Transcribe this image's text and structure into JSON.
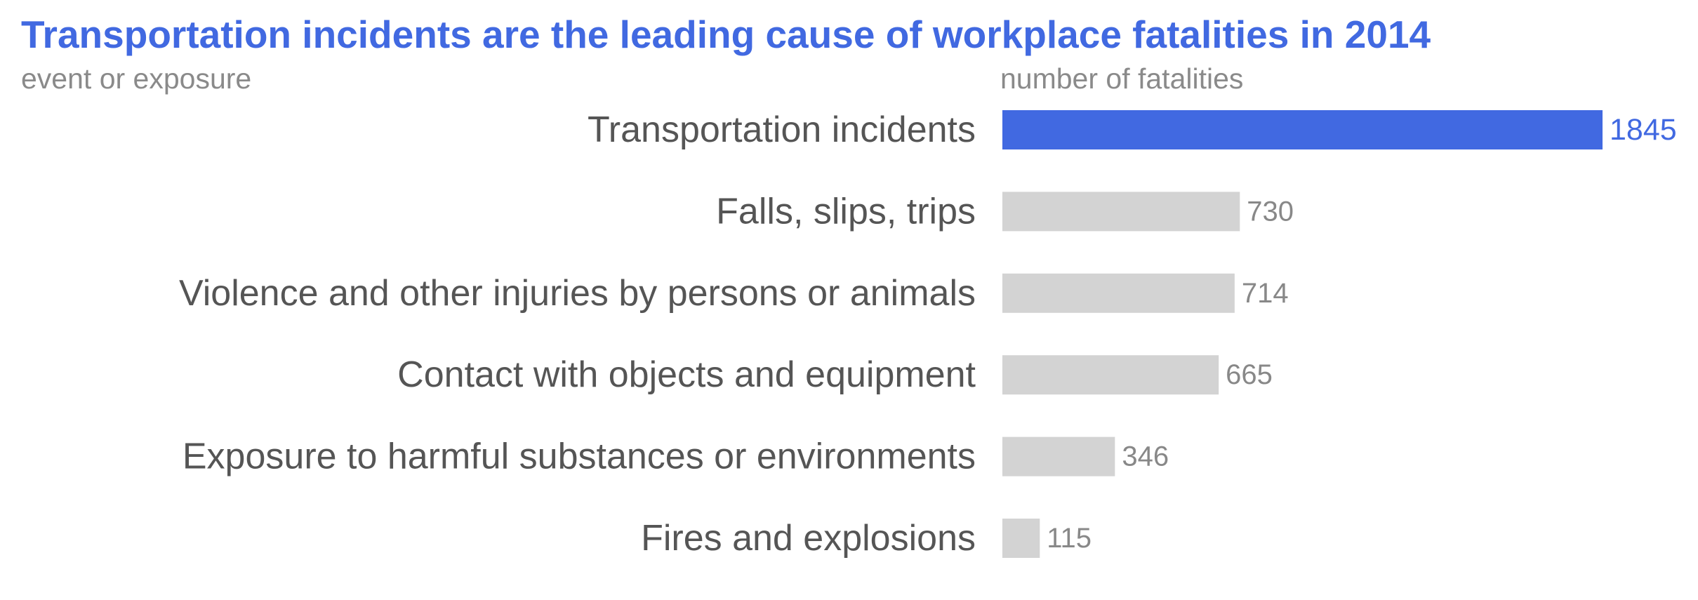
{
  "chart_data": {
    "type": "bar",
    "orientation": "horizontal",
    "title": "Transportation incidents are the leading cause of workplace fatalities in 2014",
    "ylabel": "event or exposure",
    "xlabel": "number of fatalities",
    "categories": [
      "Transportation incidents",
      "Falls, slips, trips",
      "Violence and other injuries by persons or animals",
      "Contact with objects and equipment",
      "Exposure to harmful substances or environments",
      "Fires and explosions"
    ],
    "values": [
      1845,
      730,
      714,
      665,
      346,
      115
    ],
    "highlight_index": 0,
    "xlim": [
      0,
      1845
    ],
    "grid": false,
    "legend": "none",
    "colors": {
      "highlight": "#4169E1",
      "bar": "#D3D3D3",
      "category_label": "#555555",
      "value_label": "#888888",
      "caption": "#8a8a8a"
    }
  }
}
